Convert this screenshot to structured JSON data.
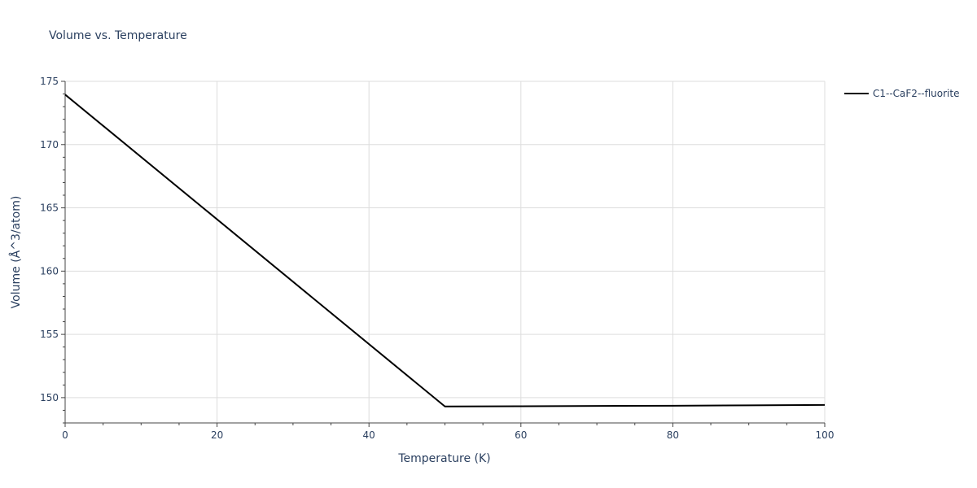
{
  "chart_data": {
    "type": "line",
    "title": "Volume vs. Temperature",
    "xlabel": "Temperature (K)",
    "ylabel": "Volume (Å^3/atom)",
    "xlim": [
      0,
      100
    ],
    "ylim": [
      148,
      175
    ],
    "x_ticks": [
      0,
      20,
      40,
      60,
      80,
      100
    ],
    "y_ticks": [
      150,
      155,
      160,
      165,
      170,
      175
    ],
    "grid": true,
    "legend_position": "top-right",
    "series": [
      {
        "name": "C1--CaF2--fluorite",
        "color": "#000000",
        "x": [
          0,
          50,
          60,
          70,
          80,
          90,
          100
        ],
        "y": [
          173.95,
          149.3,
          149.32,
          149.34,
          149.36,
          149.39,
          149.42
        ]
      }
    ]
  }
}
